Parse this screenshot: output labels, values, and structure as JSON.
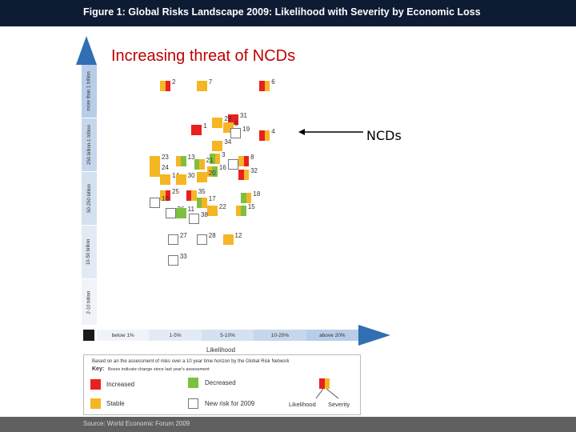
{
  "header": {
    "title": "Figure 1: Global Risks Landscape 2009: Likelihood with Severity by Economic Loss"
  },
  "overlay": {
    "headline": "Increasing threat of NCDs",
    "callout": "NCDs"
  },
  "footer": {
    "source": "Source: World Economic Forum 2009"
  },
  "colors": {
    "increased": "#e8211f",
    "decreased": "#7fbf3f",
    "stable": "#f5b623",
    "axis_blue": "#2f6fb2",
    "title_bg": "#0d1b33",
    "headline": "#c00000"
  },
  "chart_data": {
    "type": "scatter",
    "title": "Figure 1: Global Risks Landscape 2009: Likelihood with Severity by Economic Loss",
    "xlabel": "Likelihood",
    "ylabel": "",
    "x_categories": [
      "below 1%",
      "1-5%",
      "5-10%",
      "10-20%",
      "above 20%"
    ],
    "y_categories": [
      "2-10 billion",
      "10-50 billion",
      "50-250 billion",
      "250 billion-1 trillion",
      "more than 1 trillion"
    ],
    "key": {
      "note": "Based on an the assessment of risks over a 10 year time horizon by the Global Risk Network",
      "title": "Key:",
      "subtitle": "Boxes indicate change since last year's assessment",
      "entries": [
        "Increased",
        "Decreased",
        "Stable",
        "New risk for 2009"
      ],
      "split_labels": [
        "Likelihood",
        "Severity"
      ]
    },
    "points": [
      {
        "id": "2",
        "x": 1.3,
        "y": 4.6,
        "likelihood": "stable",
        "severity": "increased"
      },
      {
        "id": "7",
        "x": 2.0,
        "y": 4.6,
        "likelihood": "stable",
        "severity": "stable"
      },
      {
        "id": "6",
        "x": 3.2,
        "y": 4.6,
        "likelihood": "increased",
        "severity": "stable"
      },
      {
        "id": "31",
        "x": 2.6,
        "y": 3.95,
        "likelihood": "increased",
        "severity": "increased"
      },
      {
        "id": "29",
        "x": 2.3,
        "y": 3.9,
        "likelihood": "stable",
        "severity": "stable"
      },
      {
        "id": "5",
        "x": 2.5,
        "y": 3.8,
        "likelihood": "stable",
        "severity": "stable"
      },
      {
        "id": "1",
        "x": 1.9,
        "y": 3.75,
        "likelihood": "increased",
        "severity": "increased"
      },
      {
        "id": "19",
        "x": 2.65,
        "y": 3.7,
        "likelihood": "new",
        "severity": "new"
      },
      {
        "id": "4",
        "x": 3.2,
        "y": 3.65,
        "likelihood": "increased",
        "severity": "stable"
      },
      {
        "id": "34",
        "x": 2.3,
        "y": 3.45,
        "likelihood": "stable",
        "severity": "stable"
      },
      {
        "id": "13",
        "x": 1.6,
        "y": 3.15,
        "likelihood": "stable",
        "severity": "decreased"
      },
      {
        "id": "3",
        "x": 2.25,
        "y": 3.2,
        "likelihood": "decreased",
        "severity": "stable"
      },
      {
        "id": "9",
        "x": 2.6,
        "y": 3.1,
        "likelihood": "new",
        "severity": "new"
      },
      {
        "id": "8",
        "x": 2.8,
        "y": 3.15,
        "likelihood": "stable",
        "severity": "increased"
      },
      {
        "id": "23",
        "x": 1.1,
        "y": 3.15,
        "likelihood": "stable",
        "severity": "stable"
      },
      {
        "id": "21",
        "x": 1.95,
        "y": 3.1,
        "likelihood": "decreased",
        "severity": "stable"
      },
      {
        "id": "24",
        "x": 1.1,
        "y": 2.95,
        "likelihood": "stable",
        "severity": "stable"
      },
      {
        "id": "16",
        "x": 2.2,
        "y": 2.95,
        "likelihood": "stable",
        "severity": "decreased"
      },
      {
        "id": "32",
        "x": 2.8,
        "y": 2.9,
        "likelihood": "increased",
        "severity": "stable"
      },
      {
        "id": "20",
        "x": 2.0,
        "y": 2.85,
        "likelihood": "stable",
        "severity": "stable"
      },
      {
        "id": "14",
        "x": 1.3,
        "y": 2.8,
        "likelihood": "stable",
        "severity": "stable"
      },
      {
        "id": "30",
        "x": 1.6,
        "y": 2.8,
        "likelihood": "stable",
        "severity": "stable"
      },
      {
        "id": "25",
        "x": 1.3,
        "y": 2.5,
        "likelihood": "stable",
        "severity": "increased"
      },
      {
        "id": "35",
        "x": 1.8,
        "y": 2.5,
        "likelihood": "increased",
        "severity": "stable"
      },
      {
        "id": "18",
        "x": 2.85,
        "y": 2.45,
        "likelihood": "decreased",
        "severity": "stable"
      },
      {
        "id": "10",
        "x": 1.1,
        "y": 2.35,
        "likelihood": "new",
        "severity": "new"
      },
      {
        "id": "17",
        "x": 2.0,
        "y": 2.35,
        "likelihood": "decreased",
        "severity": "stable"
      },
      {
        "id": "22",
        "x": 2.2,
        "y": 2.2,
        "likelihood": "stable",
        "severity": "stable"
      },
      {
        "id": "15",
        "x": 2.75,
        "y": 2.2,
        "likelihood": "stable",
        "severity": "decreased"
      },
      {
        "id": "26",
        "x": 1.4,
        "y": 2.15,
        "likelihood": "new",
        "severity": "new"
      },
      {
        "id": "11",
        "x": 1.6,
        "y": 2.15,
        "likelihood": "decreased",
        "severity": "decreased"
      },
      {
        "id": "38",
        "x": 1.85,
        "y": 2.05,
        "likelihood": "new",
        "severity": "new"
      },
      {
        "id": "27",
        "x": 1.45,
        "y": 1.65,
        "likelihood": "new",
        "severity": "new"
      },
      {
        "id": "28",
        "x": 2.0,
        "y": 1.65,
        "likelihood": "new",
        "severity": "new"
      },
      {
        "id": "12",
        "x": 2.5,
        "y": 1.65,
        "likelihood": "stable",
        "severity": "stable"
      },
      {
        "id": "33",
        "x": 1.45,
        "y": 1.25,
        "likelihood": "new",
        "severity": "new"
      }
    ]
  }
}
